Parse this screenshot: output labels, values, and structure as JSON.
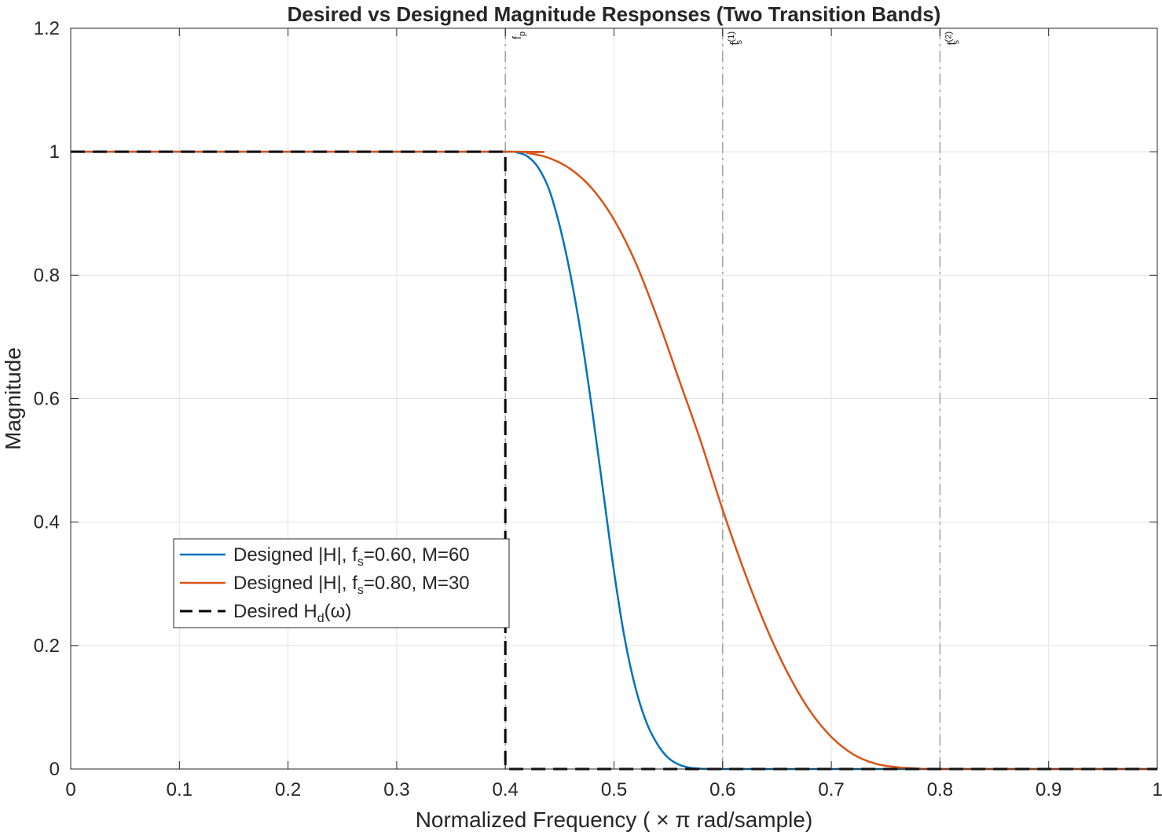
{
  "chart_data": {
    "type": "line",
    "title": "Desired vs Designed Magnitude Responses (Two Transition Bands)",
    "xlabel": "Normalized  Frequency  ( × π  rad/sample)",
    "ylabel": "Magnitude",
    "xlim": [
      0,
      1
    ],
    "ylim": [
      0,
      1.2
    ],
    "xticks": [
      0,
      0.1,
      0.2,
      0.3,
      0.4,
      0.5,
      0.6,
      0.7,
      0.8,
      0.9,
      1
    ],
    "xtick_labels": [
      "0",
      "0.1",
      "0.2",
      "0.3",
      "0.4",
      "0.5",
      "0.6",
      "0.7",
      "0.8",
      "0.9",
      "1"
    ],
    "yticks": [
      0,
      0.2,
      0.4,
      0.6,
      0.8,
      1,
      1.2
    ],
    "ytick_labels": [
      "0",
      "0.2",
      "0.4",
      "0.6",
      "0.8",
      "1",
      "1.2"
    ],
    "grid": true,
    "legend_position": "lower-left",
    "series": [
      {
        "name": "Designed  |H|,  f_s=0.60,  M=60",
        "legend_main": "Designed  |H|,  f",
        "legend_sub": "s",
        "legend_tail": "=0.60,  M=60",
        "color": "#0072BD",
        "dash": "solid",
        "x": [
          0,
          0.4,
          0.41,
          0.42,
          0.43,
          0.44,
          0.45,
          0.46,
          0.47,
          0.48,
          0.49,
          0.5,
          0.51,
          0.52,
          0.53,
          0.54,
          0.55,
          0.56,
          0.57,
          0.58,
          0.59,
          0.6,
          0.7,
          0.8,
          0.9,
          1.0
        ],
        "y": [
          1,
          1,
          0.999,
          0.993,
          0.975,
          0.94,
          0.88,
          0.8,
          0.7,
          0.58,
          0.45,
          0.32,
          0.21,
          0.13,
          0.075,
          0.04,
          0.018,
          0.007,
          0.002,
          0.0005,
          0.0001,
          0,
          0,
          0,
          0,
          0
        ]
      },
      {
        "name": "Designed  |H|,  f_s=0.80,  M=30",
        "legend_main": "Designed  |H|,  f",
        "legend_sub": "s",
        "legend_tail": "=0.80,  M=30",
        "color": "#D95319",
        "dash": "solid",
        "x": [
          0,
          0.4,
          0.42,
          0.44,
          0.46,
          0.48,
          0.5,
          0.52,
          0.54,
          0.56,
          0.58,
          0.6,
          0.62,
          0.64,
          0.66,
          0.68,
          0.7,
          0.72,
          0.74,
          0.76,
          0.78,
          0.8,
          0.9,
          1.0
        ],
        "y": [
          1,
          1,
          0.998,
          0.99,
          0.972,
          0.94,
          0.89,
          0.82,
          0.73,
          0.63,
          0.53,
          0.42,
          0.32,
          0.23,
          0.155,
          0.095,
          0.052,
          0.024,
          0.009,
          0.003,
          0.0006,
          0,
          0,
          0
        ]
      },
      {
        "name": "Desired  H_d(ω)",
        "legend_main": "Desired  H",
        "legend_sub": "d",
        "legend_tail": "(ω)",
        "color": "#000000",
        "dash": "dashed",
        "x": [
          0,
          0.4,
          0.4,
          1.0
        ],
        "y": [
          1,
          1,
          0,
          0
        ]
      }
    ],
    "vlines": [
      {
        "x": 0.4,
        "label_main": "f",
        "label_sub": "p",
        "label_sup": ""
      },
      {
        "x": 0.6,
        "label_main": "f",
        "label_sub": "s",
        "label_sup": "(1)"
      },
      {
        "x": 0.8,
        "label_main": "f",
        "label_sub": "s",
        "label_sup": "(2)"
      }
    ]
  }
}
